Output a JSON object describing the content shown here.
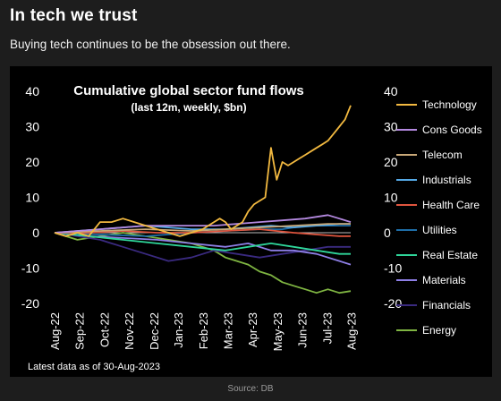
{
  "header": {
    "title": "In tech we trust",
    "subtitle": "Buying tech continues to be the obsession out there."
  },
  "footer": {
    "source": "Source: DB"
  },
  "chart_data": {
    "type": "line",
    "title": "Cumulative global sector fund flows",
    "subtitle": "(last 12m, weekly, $bn)",
    "annotation": "Latest data as of 30-Aug-2023",
    "xlabel": "",
    "ylabel": "",
    "ylim": [
      -20,
      40
    ],
    "yticks": [
      40,
      30,
      20,
      10,
      0,
      -10,
      -20
    ],
    "ytick_labels": [
      "40",
      "30",
      "20",
      "10",
      "0",
      "-10",
      "-20"
    ],
    "xlim": [
      0,
      52
    ],
    "xticks": [
      0,
      4.3,
      8.7,
      13,
      17.4,
      21.7,
      26.1,
      30.4,
      34.7,
      39.1,
      43.4,
      47.8,
      52.1
    ],
    "xtick_labels": [
      "Aug-22",
      "Sep-22",
      "Oct-22",
      "Nov-22",
      "Dec-22",
      "Jan-23",
      "Feb-23",
      "Mar-23",
      "Apr-23",
      "May-23",
      "Jun-23",
      "Jul-23",
      "Aug-23"
    ],
    "dual_y_axis": true,
    "grid": false,
    "legend_position": "right",
    "series": [
      {
        "name": "Technology",
        "color": "#f2b940",
        "x": [
          0,
          2,
          4,
          6,
          8,
          10,
          12,
          14,
          16,
          18,
          20,
          22,
          24,
          26,
          28,
          29,
          30,
          31,
          32,
          33,
          34,
          35,
          36,
          37,
          38,
          39,
          40,
          41,
          42,
          43,
          44,
          45,
          46,
          47,
          48,
          49,
          50,
          51,
          52
        ],
        "values": [
          0,
          -1,
          0,
          -1,
          3,
          3,
          4,
          3,
          2,
          1,
          0,
          -1,
          0,
          1,
          3,
          4,
          3,
          1,
          2,
          3,
          6,
          8,
          9,
          10,
          24,
          15,
          20,
          19,
          20,
          21,
          22,
          23,
          24,
          25,
          26,
          28,
          30,
          32,
          36
        ]
      },
      {
        "name": "Cons Goods",
        "color": "#b489e0",
        "x": [
          0,
          4,
          8,
          12,
          16,
          20,
          24,
          28,
          32,
          36,
          40,
          44,
          48,
          50,
          52
        ],
        "values": [
          0,
          0.5,
          1,
          1.5,
          2,
          2,
          2,
          2,
          2.5,
          3,
          3.5,
          4,
          5,
          4,
          3
        ]
      },
      {
        "name": "Telecom",
        "color": "#c8a878",
        "x": [
          0,
          8,
          16,
          24,
          30,
          36,
          42,
          48,
          52
        ],
        "values": [
          0,
          0.5,
          1,
          0.5,
          1,
          1.5,
          2,
          2.5,
          2.5
        ]
      },
      {
        "name": "Industrials",
        "color": "#55a9e6",
        "x": [
          0,
          8,
          16,
          24,
          30,
          34,
          38,
          42,
          46,
          50,
          52
        ],
        "values": [
          0,
          1,
          2,
          1,
          1,
          1.5,
          2,
          1.5,
          2,
          2.5,
          2.5
        ]
      },
      {
        "name": "Health Care",
        "color": "#e0553e",
        "x": [
          0,
          6,
          12,
          18,
          24,
          30,
          36,
          42,
          46,
          50,
          52
        ],
        "values": [
          0,
          0,
          0.5,
          0,
          0,
          0.5,
          1,
          0,
          -0.5,
          -1,
          -1
        ]
      },
      {
        "name": "Utilities",
        "color": "#1e6ea8",
        "x": [
          0,
          8,
          16,
          24,
          30,
          36,
          40,
          44,
          48,
          52
        ],
        "values": [
          0,
          -0.5,
          -1,
          0,
          0.5,
          1,
          1,
          2,
          2,
          2
        ]
      },
      {
        "name": "Real Estate",
        "color": "#2fd69a",
        "x": [
          0,
          6,
          12,
          18,
          24,
          30,
          34,
          38,
          42,
          46,
          50,
          52
        ],
        "values": [
          0,
          -1,
          -2,
          -3,
          -4,
          -5,
          -4,
          -3,
          -4,
          -5,
          -6,
          -6
        ]
      },
      {
        "name": "Materials",
        "color": "#8e7fe6",
        "x": [
          0,
          6,
          12,
          18,
          24,
          30,
          34,
          38,
          42,
          46,
          50,
          52
        ],
        "values": [
          0,
          -1,
          -1.5,
          -2,
          -3,
          -4,
          -3,
          -5,
          -5,
          -6,
          -8,
          -9
        ]
      },
      {
        "name": "Financials",
        "color": "#3a2a80",
        "x": [
          0,
          4,
          8,
          12,
          16,
          20,
          24,
          28,
          32,
          36,
          40,
          44,
          48,
          52
        ],
        "values": [
          0,
          -1,
          -2,
          -4,
          -6,
          -8,
          -7,
          -5,
          -6,
          -7,
          -6,
          -5,
          -4,
          -4
        ]
      },
      {
        "name": "Energy",
        "color": "#7fb542",
        "x": [
          0,
          4,
          8,
          12,
          16,
          20,
          24,
          26,
          28,
          30,
          32,
          34,
          36,
          38,
          40,
          42,
          44,
          46,
          48,
          50,
          52
        ],
        "values": [
          0,
          -2,
          -1,
          0,
          -1,
          -2,
          -3,
          -4,
          -5,
          -7,
          -8,
          -9,
          -11,
          -12,
          -14,
          -15,
          -16,
          -17,
          -16,
          -17,
          -16.5
        ]
      }
    ]
  }
}
